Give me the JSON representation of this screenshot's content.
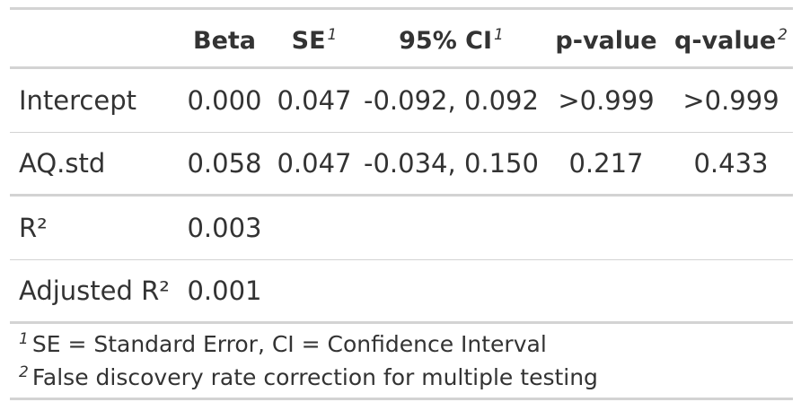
{
  "table": {
    "headers": [
      {
        "label": "",
        "footnote": ""
      },
      {
        "label": "Beta",
        "footnote": ""
      },
      {
        "label": "SE",
        "footnote": "1"
      },
      {
        "label": "95% CI",
        "footnote": "1"
      },
      {
        "label": "p-value",
        "footnote": ""
      },
      {
        "label": "q-value",
        "footnote": "2"
      }
    ],
    "rows": [
      [
        "Intercept",
        "0.000",
        "0.047",
        "-0.092, 0.092",
        ">0.999",
        ">0.999"
      ],
      [
        "AQ.std",
        "0.058",
        "0.047",
        "-0.034, 0.150",
        "0.217",
        "0.433"
      ],
      [
        "R²",
        "0.003",
        "",
        "",
        "",
        ""
      ],
      [
        "Adjusted R²",
        "0.001",
        "",
        "",
        "",
        ""
      ]
    ],
    "footnotes": [
      {
        "marker": "1",
        "text": "SE = Standard Error, CI = Confidence Interval"
      },
      {
        "marker": "2",
        "text": "False discovery rate correction for multiple testing"
      }
    ]
  }
}
